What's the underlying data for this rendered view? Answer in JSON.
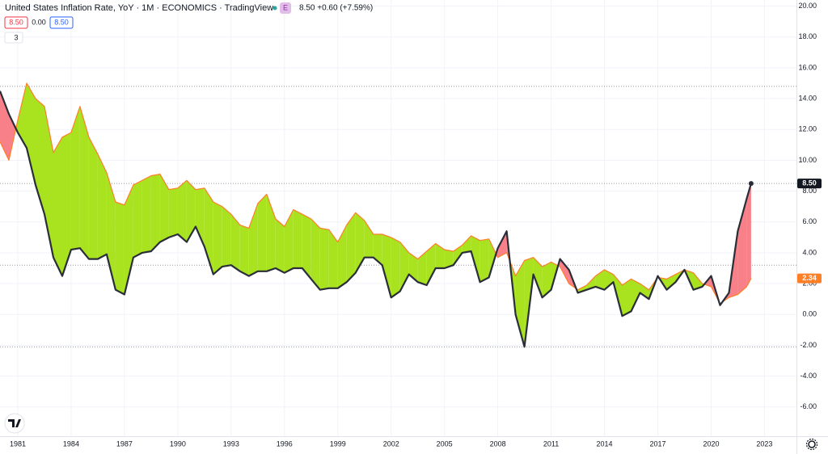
{
  "chart_data": {
    "type": "line",
    "title": "United States Inflation Rate, YoY · 1M · ECONOMICS · TradingView",
    "source_badge": "E",
    "header_quote": "8.50 +0.60 (+7.59%)",
    "badges": [
      "8.50",
      "0.00",
      "8.50"
    ],
    "indicator_count": "3",
    "x": [
      1980.0,
      1980.5,
      1981.0,
      1981.5,
      1982.0,
      1982.5,
      1983.0,
      1983.5,
      1984.0,
      1984.5,
      1985.0,
      1985.5,
      1986.0,
      1986.5,
      1987.0,
      1987.5,
      1988.0,
      1988.5,
      1989.0,
      1989.5,
      1990.0,
      1990.5,
      1991.0,
      1991.5,
      1992.0,
      1992.5,
      1993.0,
      1993.5,
      1994.0,
      1994.5,
      1995.0,
      1995.5,
      1996.0,
      1996.5,
      1997.0,
      1997.5,
      1998.0,
      1998.5,
      1999.0,
      1999.5,
      2000.0,
      2000.5,
      2001.0,
      2001.5,
      2002.0,
      2002.5,
      2003.0,
      2003.5,
      2004.0,
      2004.5,
      2005.0,
      2005.5,
      2006.0,
      2006.5,
      2007.0,
      2007.5,
      2008.0,
      2008.5,
      2009.0,
      2009.5,
      2010.0,
      2010.5,
      2011.0,
      2011.5,
      2012.0,
      2012.5,
      2013.0,
      2013.5,
      2014.0,
      2014.5,
      2015.0,
      2015.5,
      2016.0,
      2016.5,
      2017.0,
      2017.5,
      2018.0,
      2018.5,
      2019.0,
      2019.5,
      2020.0,
      2020.5,
      2021.0,
      2021.5,
      2022.0,
      2022.25
    ],
    "series": [
      {
        "color": "#2a2e39",
        "values": [
          14.5,
          13.0,
          11.8,
          10.8,
          8.4,
          6.5,
          3.7,
          2.5,
          4.2,
          4.3,
          3.6,
          3.6,
          3.9,
          1.6,
          1.3,
          3.7,
          4.0,
          4.1,
          4.7,
          5.0,
          5.2,
          4.7,
          5.7,
          4.4,
          2.6,
          3.1,
          3.2,
          2.8,
          2.5,
          2.8,
          2.8,
          3.0,
          2.7,
          3.0,
          3.0,
          2.3,
          1.6,
          1.7,
          1.7,
          2.1,
          2.7,
          3.7,
          3.7,
          3.2,
          1.1,
          1.5,
          2.6,
          2.1,
          1.9,
          3.0,
          3.0,
          3.2,
          4.0,
          4.1,
          2.1,
          2.4,
          4.3,
          5.4,
          0.0,
          -2.1,
          2.6,
          1.1,
          1.6,
          3.6,
          2.9,
          1.4,
          1.6,
          1.8,
          1.6,
          2.1,
          -0.1,
          0.2,
          1.4,
          1.0,
          2.5,
          1.6,
          2.1,
          2.9,
          1.6,
          1.8,
          2.5,
          0.6,
          1.4,
          5.4,
          7.5,
          8.5
        ]
      },
      {
        "color": "#ff7f27",
        "values": [
          11.2,
          10.0,
          12.6,
          15.0,
          14.0,
          13.5,
          10.5,
          11.5,
          11.8,
          13.5,
          11.5,
          10.4,
          9.2,
          7.3,
          7.1,
          8.4,
          8.7,
          9.0,
          9.1,
          8.1,
          8.2,
          8.7,
          8.1,
          8.2,
          7.3,
          7.0,
          6.5,
          5.8,
          5.6,
          7.2,
          7.8,
          6.2,
          5.7,
          6.8,
          6.5,
          6.2,
          5.6,
          5.5,
          4.7,
          5.8,
          6.6,
          6.1,
          5.2,
          5.2,
          5.0,
          4.7,
          4.0,
          3.6,
          4.1,
          4.6,
          4.2,
          4.1,
          4.5,
          5.1,
          4.8,
          4.9,
          3.7,
          4.0,
          2.5,
          3.5,
          3.7,
          3.1,
          3.4,
          3.1,
          2.0,
          1.6,
          1.9,
          2.5,
          2.9,
          2.6,
          1.9,
          2.3,
          2.0,
          1.6,
          2.4,
          2.3,
          2.6,
          2.9,
          2.7,
          2.0,
          1.8,
          0.7,
          1.1,
          1.3,
          1.8,
          2.34
        ]
      }
    ],
    "fill_colors": {
      "above": "#a9e21f",
      "below": "#f88088"
    },
    "last_labels": [
      {
        "value": 8.5,
        "label": "8.50",
        "color": "#131722"
      },
      {
        "value": 2.34,
        "label": "2.34",
        "color": "#ff7f27"
      }
    ],
    "hlines": [
      14.8,
      8.5,
      3.2,
      -2.1
    ],
    "xlim": [
      1980,
      2024.8
    ],
    "xticks": [
      1981,
      1984,
      1987,
      1990,
      1993,
      1996,
      1999,
      2002,
      2005,
      2008,
      2011,
      2014,
      2017,
      2020,
      2023
    ],
    "ylim": [
      -7.9,
      20.4
    ],
    "yticks": [
      {
        "value": 20,
        "label": "20.00"
      },
      {
        "value": 18,
        "label": "18.00"
      },
      {
        "value": 16,
        "label": "16.00"
      },
      {
        "value": 14,
        "label": "14.00"
      },
      {
        "value": 12,
        "label": "12.00"
      },
      {
        "value": 10,
        "label": "10.00"
      },
      {
        "value": 8,
        "label": "8.00"
      },
      {
        "value": 6,
        "label": "6.00"
      },
      {
        "value": 4,
        "label": "4.00"
      },
      {
        "value": 2,
        "label": "2.00"
      },
      {
        "value": 0,
        "label": "0.00"
      },
      {
        "value": -2,
        "label": "-2.00"
      },
      {
        "value": -4,
        "label": "-4.00"
      },
      {
        "value": -6,
        "label": "-6.00"
      }
    ],
    "grid": true
  }
}
